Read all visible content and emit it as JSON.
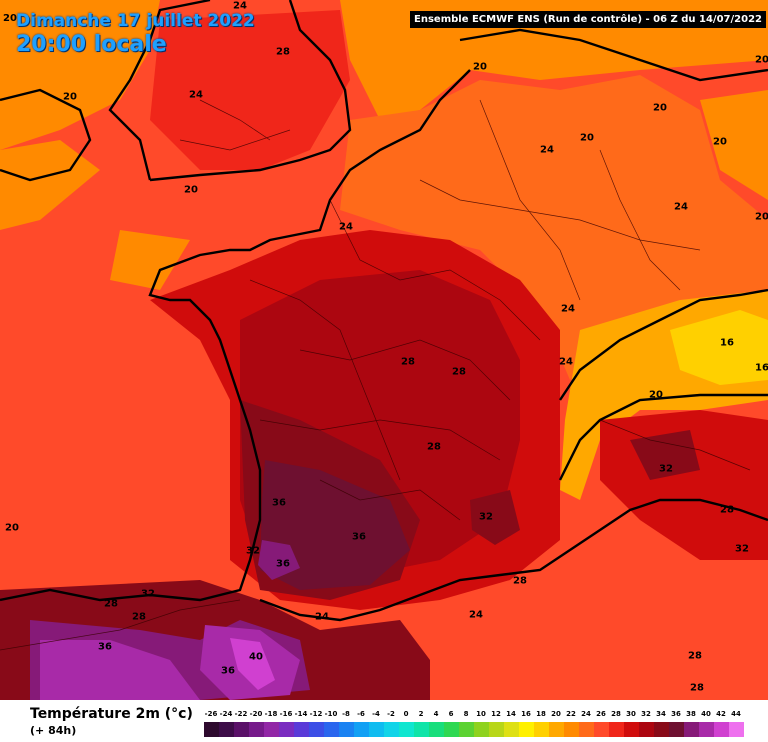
{
  "map": {
    "date_title": "Dimanche 17 juillet 2022",
    "time_title": "20:00 locale",
    "corner_value": "20",
    "model_header": "Ensemble ECMWF ENS  (Run de contrôle)  -  06 Z du 14/07/2022",
    "iso_labels": [
      {
        "text": "24",
        "name": "iso-label-north-sea"
      },
      {
        "text": "28",
        "name": "iso-label-east-england"
      },
      {
        "text": "20",
        "name": "iso-label-ireland"
      },
      {
        "text": "24",
        "name": "iso-label-wales"
      },
      {
        "text": "20",
        "name": "iso-label-cornwall"
      },
      {
        "text": "20",
        "name": "iso-label-netherlands"
      },
      {
        "text": "20",
        "name": "iso-label-germany-north"
      },
      {
        "text": "20",
        "name": "iso-label-ruhr"
      },
      {
        "text": "20",
        "name": "iso-label-saxony"
      },
      {
        "text": "20",
        "name": "iso-label-poland"
      },
      {
        "text": "24",
        "name": "iso-label-rhine"
      },
      {
        "text": "24",
        "name": "iso-label-bavaria"
      },
      {
        "text": "20",
        "name": "iso-label-austria"
      },
      {
        "text": "24",
        "name": "iso-label-normandy"
      },
      {
        "text": "24",
        "name": "iso-label-alsace"
      },
      {
        "text": "24",
        "name": "iso-label-switzerland"
      },
      {
        "text": "16",
        "name": "iso-label-alps-west"
      },
      {
        "text": "16",
        "name": "iso-label-alps-east"
      },
      {
        "text": "20",
        "name": "iso-label-alps-south"
      },
      {
        "text": "28",
        "name": "iso-label-centre-france"
      },
      {
        "text": "28",
        "name": "iso-label-burgundy"
      },
      {
        "text": "28",
        "name": "iso-label-massif-central"
      },
      {
        "text": "32",
        "name": "iso-label-po-valley"
      },
      {
        "text": "36",
        "name": "iso-label-bordeaux"
      },
      {
        "text": "36",
        "name": "iso-label-toulouse"
      },
      {
        "text": "32",
        "name": "iso-label-landes"
      },
      {
        "text": "36",
        "name": "iso-label-gers"
      },
      {
        "text": "32",
        "name": "iso-label-rhone"
      },
      {
        "text": "28",
        "name": "iso-label-liguria"
      },
      {
        "text": "32",
        "name": "iso-label-tuscany"
      },
      {
        "text": "20",
        "name": "iso-label-atlantic"
      },
      {
        "text": "32",
        "name": "iso-label-basque-country"
      },
      {
        "text": "28",
        "name": "iso-label-cantabria"
      },
      {
        "text": "28",
        "name": "iso-label-navarre"
      },
      {
        "text": "24",
        "name": "iso-label-gulf-of-lion"
      },
      {
        "text": "28",
        "name": "iso-label-provence"
      },
      {
        "text": "24",
        "name": "iso-label-mediterranean"
      },
      {
        "text": "36",
        "name": "iso-label-castile"
      },
      {
        "text": "40",
        "name": "iso-label-aragon"
      },
      {
        "text": "36",
        "name": "iso-label-ebro"
      },
      {
        "text": "28",
        "name": "iso-label-corsica"
      },
      {
        "text": "28",
        "name": "iso-label-sardinia"
      }
    ]
  },
  "legend": {
    "title": "Température 2m (°c)",
    "subtitle": "(+ 84h)",
    "scale": [
      {
        "label": "-26",
        "color": "#2e0a2e"
      },
      {
        "label": "-24",
        "color": "#3d0c48"
      },
      {
        "label": "-22",
        "color": "#5a1068"
      },
      {
        "label": "-20",
        "color": "#761a8a"
      },
      {
        "label": "-18",
        "color": "#9226a6"
      },
      {
        "label": "-16",
        "color": "#7a2cc0"
      },
      {
        "label": "-14",
        "color": "#5a3ad8"
      },
      {
        "label": "-12",
        "color": "#3c4ee6"
      },
      {
        "label": "-10",
        "color": "#2a66ee"
      },
      {
        "label": "-8",
        "color": "#1a82f2"
      },
      {
        "label": "-6",
        "color": "#12a0f4"
      },
      {
        "label": "-4",
        "color": "#10bcf0"
      },
      {
        "label": "-2",
        "color": "#12d4e8"
      },
      {
        "label": "0",
        "color": "#10e6d0"
      },
      {
        "label": "2",
        "color": "#10e4a8"
      },
      {
        "label": "4",
        "color": "#18de7c"
      },
      {
        "label": "6",
        "color": "#2ed852"
      },
      {
        "label": "8",
        "color": "#5cd232"
      },
      {
        "label": "10",
        "color": "#8ed21e"
      },
      {
        "label": "12",
        "color": "#b8d618"
      },
      {
        "label": "14",
        "color": "#dee014"
      },
      {
        "label": "16",
        "color": "#fff000"
      },
      {
        "label": "18",
        "color": "#ffd000"
      },
      {
        "label": "20",
        "color": "#ffa800"
      },
      {
        "label": "22",
        "color": "#ff8a00"
      },
      {
        "label": "24",
        "color": "#ff6a1a"
      },
      {
        "label": "26",
        "color": "#ff4a2a"
      },
      {
        "label": "28",
        "color": "#f0261a"
      },
      {
        "label": "30",
        "color": "#d00c0c"
      },
      {
        "label": "32",
        "color": "#ac0610"
      },
      {
        "label": "34",
        "color": "#880a18"
      },
      {
        "label": "36",
        "color": "#6e1030"
      },
      {
        "label": "38",
        "color": "#861a78"
      },
      {
        "label": "40",
        "color": "#a82aa8"
      },
      {
        "label": "42",
        "color": "#d040d0"
      },
      {
        "label": "44",
        "color": "#ee70ee"
      }
    ]
  }
}
